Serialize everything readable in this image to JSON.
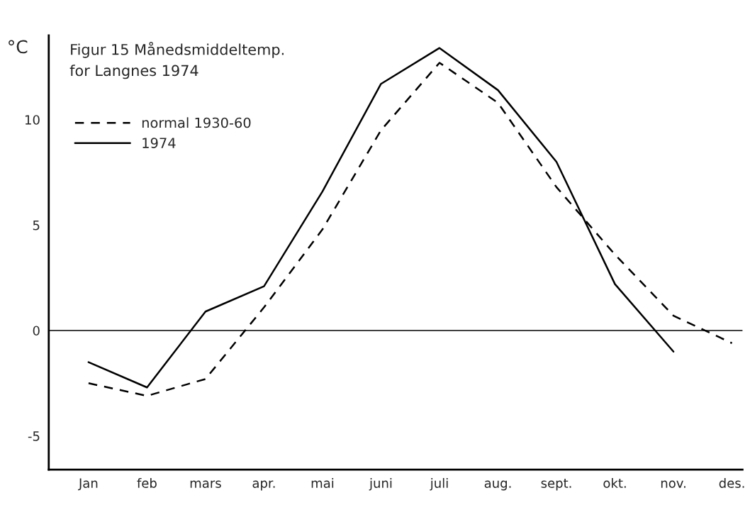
{
  "chart_data": {
    "type": "line",
    "title": "Figur 15 Månedsmiddeltemp.\nfor Langnes 1974",
    "ylabel": "°C",
    "categories": [
      "Jan",
      "feb",
      "mars",
      "apr.",
      "mai",
      "juni",
      "juli",
      "aug.",
      "sept.",
      "okt.",
      "nov.",
      "des."
    ],
    "ylim": [
      -6.6,
      14
    ],
    "yticks": [
      -5,
      0,
      5,
      10
    ],
    "ref_lines": [
      {
        "axis": "y",
        "value": 0,
        "color": "#000000"
      }
    ],
    "grid": false,
    "legend": "top left",
    "series": [
      {
        "name": "normal 1930-60",
        "color": "#000000",
        "line_style": "dashed",
        "values": [
          -2.5,
          -3.1,
          -2.3,
          1.1,
          4.8,
          9.5,
          12.7,
          10.8,
          6.8,
          3.6,
          0.7,
          -0.6
        ]
      },
      {
        "name": "1974",
        "color": "#000000",
        "line_style": "solid",
        "values": [
          -1.5,
          -2.7,
          0.9,
          2.1,
          6.6,
          11.7,
          13.4,
          11.4,
          8.0,
          2.2,
          -1.0,
          null
        ]
      }
    ]
  }
}
